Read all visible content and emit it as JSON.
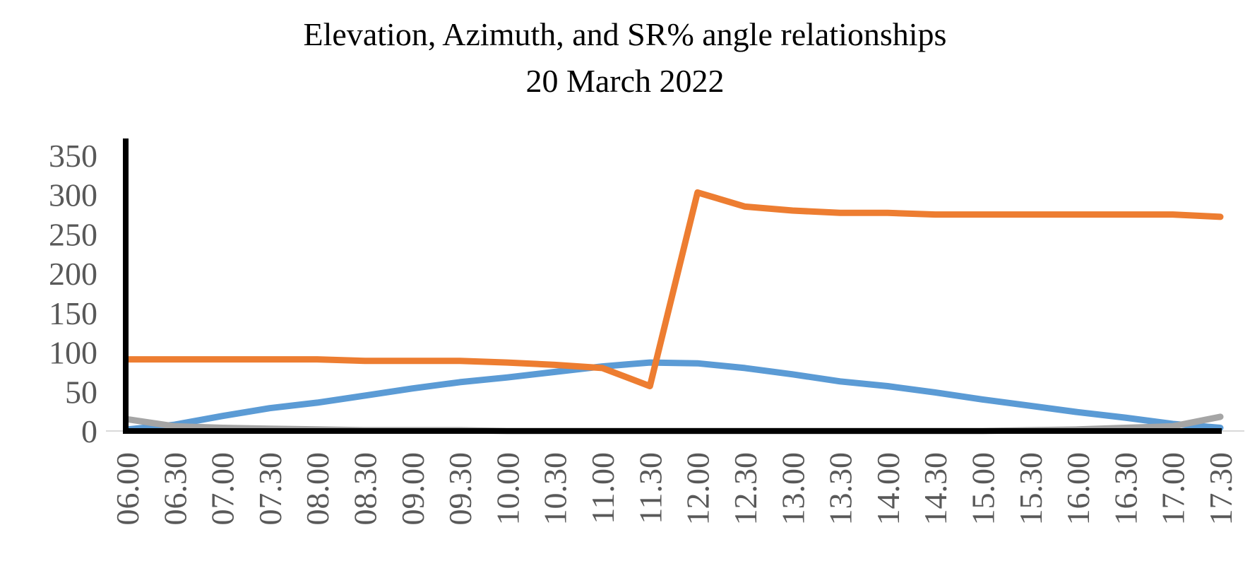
{
  "chart_data": {
    "type": "line",
    "title": "Elevation, Azimuth, and SR% angle relationships",
    "subtitle": "20 March 2022",
    "xlabel": "",
    "ylabel": "",
    "categories": [
      "06.00",
      "06.30",
      "07.00",
      "07.30",
      "08.00",
      "08.30",
      "09.00",
      "09.30",
      "10.00",
      "10.30",
      "11.00",
      "11.30",
      "12.00",
      "12.30",
      "13.00",
      "13.30",
      "14.00",
      "14.30",
      "15.00",
      "15.30",
      "16.00",
      "16.30",
      "17.00",
      "17.30"
    ],
    "ylim": [
      0,
      350
    ],
    "yticks": [
      "0",
      "50",
      "100",
      "150",
      "200",
      "250",
      "300",
      "350"
    ],
    "grid": false,
    "legend": "none",
    "series": [
      {
        "color": "#5B9BD5",
        "values": [
          2,
          8,
          19,
          29,
          36,
          45,
          54,
          62,
          68,
          75,
          82,
          87,
          86,
          80,
          72,
          63,
          57,
          49,
          40,
          32,
          24,
          17,
          9,
          4
        ]
      },
      {
        "color": "#ED7D31",
        "values": [
          91,
          91,
          91,
          91,
          91,
          89,
          89,
          89,
          87,
          84,
          80,
          57,
          303,
          285,
          280,
          277,
          277,
          275,
          275,
          275,
          275,
          275,
          275,
          272
        ]
      },
      {
        "color": "#A5A5A5",
        "values": [
          15,
          6,
          4,
          3,
          2,
          1,
          1,
          1,
          0,
          0,
          0,
          0,
          0,
          0,
          0,
          0,
          0,
          0,
          0,
          1,
          2,
          4,
          6,
          18
        ]
      }
    ]
  }
}
